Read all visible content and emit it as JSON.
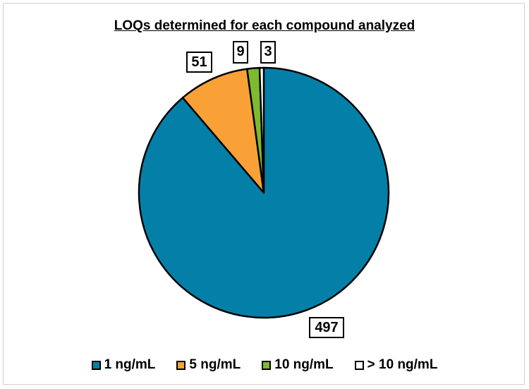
{
  "chart_data": {
    "type": "pie",
    "title": "LOQs determined for each compound analyzed",
    "start_angle_deg": 0,
    "direction": "clockwise",
    "slices": [
      {
        "label": "1 ng/mL",
        "value": 497,
        "color": "#0480A8"
      },
      {
        "label": "5 ng/mL",
        "value": 51,
        "color": "#F9A136"
      },
      {
        "label": "10 ng/mL",
        "value": 9,
        "color": "#7DBA2F"
      },
      {
        "label": "> 10 ng/mL",
        "value": 3,
        "color": "#FFFFFF"
      }
    ],
    "data_labels": [
      "497",
      "51",
      "9",
      "3"
    ],
    "legend_position": "bottom"
  }
}
